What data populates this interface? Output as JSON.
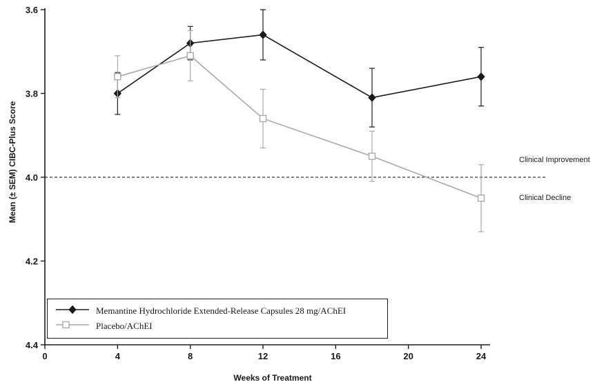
{
  "chart_data": {
    "type": "line",
    "title": "",
    "xlabel": "Weeks of Treatment",
    "ylabel": "Mean (± SEM) CIBC-Plus Score",
    "x_ticks": [
      0,
      4,
      8,
      12,
      16,
      20,
      24
    ],
    "y_ticks": [
      "3.6",
      "3.8",
      "4.0",
      "4.2",
      "4.4"
    ],
    "xlim": [
      0,
      24
    ],
    "ylim": [
      3.6,
      4.4
    ],
    "y_axis_inverted": true,
    "grid": false,
    "legend_position": "bottom-left-box",
    "reference_line": {
      "y": 4.0,
      "style": "dashed",
      "color": "#333333",
      "label_above": "Clinical Improvement",
      "label_below": "Clinical Decline"
    },
    "series": [
      {
        "name": "Memantine Hydrochloride Extended-Release Capsules 28 mg/AChEI",
        "marker": "filled-diamond",
        "color": "#1a1a1a",
        "x": [
          4,
          8,
          12,
          18,
          24
        ],
        "y": [
          3.8,
          3.68,
          3.66,
          3.81,
          3.76
        ],
        "sem": [
          0.05,
          0.04,
          0.06,
          0.07,
          0.07
        ]
      },
      {
        "name": "Placebo/AChEI",
        "marker": "open-square",
        "color": "#a9a9a9",
        "x": [
          4,
          8,
          12,
          18,
          24
        ],
        "y": [
          3.76,
          3.71,
          3.86,
          3.95,
          4.05
        ],
        "sem": [
          0.05,
          0.06,
          0.07,
          0.06,
          0.08
        ]
      }
    ]
  }
}
